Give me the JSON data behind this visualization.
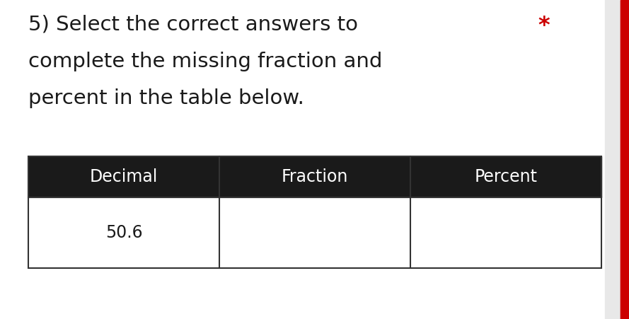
{
  "main_bg": "#ffffff",
  "title_line1": "5) Select the correct answers to",
  "title_line2": "complete the missing fraction and",
  "title_line3": "percent in the table below.",
  "asterisk": "*",
  "asterisk_color": "#cc0000",
  "text_color": "#1a1a1a",
  "header_bg": "#1a1a1a",
  "header_text_color": "#ffffff",
  "row_bg": "#ffffff",
  "row_border": "#333333",
  "headers": [
    "Decimal",
    "Fraction",
    "Percent"
  ],
  "row_data": [
    "50.6",
    "",
    ""
  ],
  "title_fontsize": 21,
  "header_fontsize": 17,
  "data_fontsize": 17,
  "right_bar_color": "#cc0000",
  "right_bar_width": 12
}
